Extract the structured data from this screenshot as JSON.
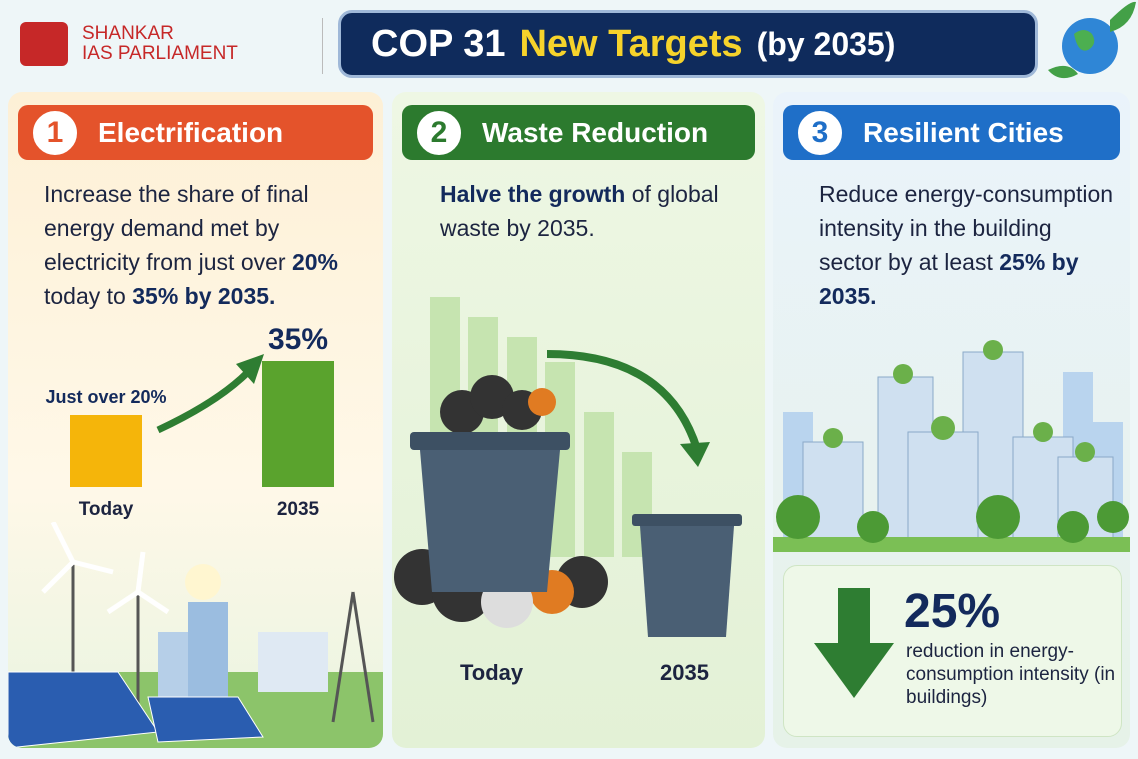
{
  "header": {
    "logo_line1": "SHANKAR",
    "logo_line2": "IAS PARLIAMENT",
    "title_parts": [
      "COP 31",
      "New Targets",
      "(by 2035)"
    ]
  },
  "panels": [
    {
      "number": "1",
      "title": "Electrification",
      "color": "#e4532b",
      "description": [
        {
          "text": "Increase the share of final energy demand met by electricity from just over ",
          "bold": false
        },
        {
          "text": "20%",
          "bold": true
        },
        {
          "text": " today to ",
          "bold": false
        },
        {
          "text": "35% by 2035.",
          "bold": true
        }
      ],
      "chart": {
        "categories": [
          "Today",
          "2035"
        ],
        "values": [
          20,
          35
        ],
        "value_labels": [
          "Just over 20%",
          "35%"
        ],
        "colors": [
          "#f5b50a",
          "#5aa32d"
        ]
      }
    },
    {
      "number": "2",
      "title": "Waste Reduction",
      "color": "#2c7a2e",
      "description": [
        {
          "text": "Halve the growth",
          "bold": true
        },
        {
          "text": " of global waste by 2035.",
          "bold": false
        }
      ],
      "labels": [
        "Today",
        "2035"
      ]
    },
    {
      "number": "3",
      "title": "Resilient Cities",
      "color": "#1f6fc8",
      "description": [
        {
          "text": "Reduce energy-consumption intensity in the building sector by at least ",
          "bold": false
        },
        {
          "text": "25% by 2035.",
          "bold": true
        }
      ],
      "stat": {
        "value_label": "25%",
        "caption": "reduction in energy-consumption intensity (in buildings)"
      }
    }
  ]
}
